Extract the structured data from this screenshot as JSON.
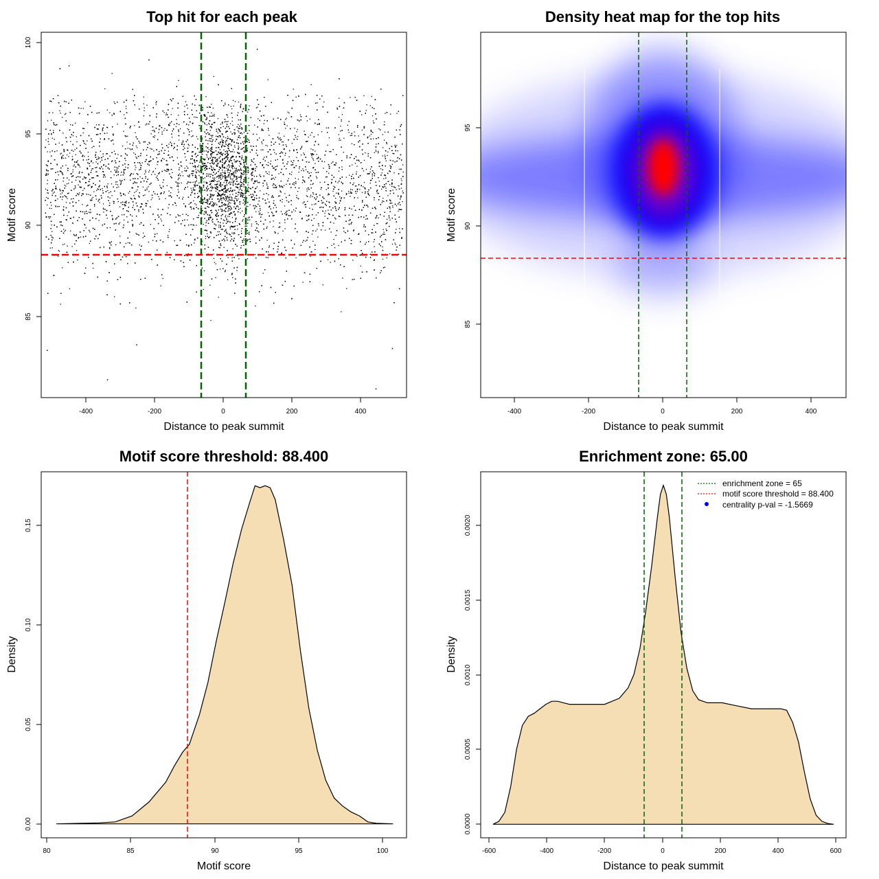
{
  "panels": {
    "scatter": {
      "title": "Top hit for each peak",
      "xlabel": "Distance to peak summit",
      "ylabel": "Motif score",
      "xticks": [
        "-400",
        "-200",
        "0",
        "200",
        "400"
      ],
      "yticks": [
        "85",
        "90",
        "95",
        "100"
      ]
    },
    "heatmap": {
      "title": "Density heat map for the top hits",
      "xlabel": "Distance to peak summit",
      "ylabel": "Motif score",
      "xticks": [
        "-400",
        "-200",
        "0",
        "200",
        "400"
      ],
      "yticks": [
        "85",
        "90",
        "95"
      ]
    },
    "score_density": {
      "title": "Motif score threshold: 88.400",
      "xlabel": "Motif score",
      "ylabel": "Density",
      "xticks": [
        "80",
        "85",
        "90",
        "95",
        "100"
      ],
      "yticks": [
        "0.00",
        "0.05",
        "0.10",
        "0.15"
      ]
    },
    "distance_density": {
      "title": "Enrichment zone: 65.00",
      "xlabel": "Distance to peak summit",
      "ylabel": "Density",
      "xticks": [
        "-600",
        "-400",
        "-200",
        "0",
        "200",
        "400",
        "600"
      ],
      "yticks": [
        "0.0000",
        "0.0005",
        "0.0010",
        "0.0015",
        "0.0020"
      ],
      "legend": [
        "enrichment zone = 65",
        "motif score threshold = 88.400",
        "centrality p-val = -1.5669"
      ]
    }
  },
  "colors": {
    "zone_line": "#006400",
    "threshold_line": "#ff0000",
    "density_fill": "#f5deb3",
    "heat_low": "#0000ff",
    "heat_high": "#ff0000",
    "legend_dot": "#0000ff"
  },
  "chart_data": [
    {
      "type": "scatter",
      "title": "Top hit for each peak",
      "xlabel": "Distance to peak summit",
      "ylabel": "Motif score",
      "xlim": [
        -500,
        500
      ],
      "ylim": [
        80.7,
        100.6
      ],
      "points_summary": "dense cloud of ~16000 points, x uniform over [-490, 490] with central enrichment at 0, y centred near 92.5",
      "x_center": 0,
      "x_halfwidth": 490,
      "y_mean": 92.6,
      "y_sd": 2.4,
      "vlines": [
        -65,
        65
      ],
      "hline": 88.4
    },
    {
      "type": "heatmap",
      "title": "Density heat map for the top hits",
      "xlabel": "Distance to peak summit",
      "ylabel": "Motif score",
      "xlim": [
        -490,
        490
      ],
      "ylim": [
        81.5,
        99.9
      ],
      "peak": {
        "x": 0,
        "y": 93.0
      },
      "vlines": [
        -65,
        65
      ],
      "hline": 88.4
    },
    {
      "type": "area",
      "title": "Motif score threshold: 88.400",
      "xlabel": "Motif score",
      "ylabel": "Density",
      "xlim": [
        79.6,
        101.3
      ],
      "ylim": [
        -0.007,
        0.177
      ],
      "x": [
        80.5,
        82,
        83,
        84,
        85,
        86,
        87,
        87.5,
        88,
        88.4,
        89,
        89.5,
        90,
        90.5,
        91,
        91.5,
        92,
        92.3,
        92.6,
        92.9,
        93.2,
        93.5,
        94,
        94.5,
        95,
        95.5,
        96,
        96.5,
        97,
        97.5,
        98,
        98.5,
        99,
        99.5,
        100.5
      ],
      "values": [
        0.0,
        0.0003,
        0.0005,
        0.001,
        0.004,
        0.011,
        0.021,
        0.029,
        0.036,
        0.04,
        0.055,
        0.071,
        0.092,
        0.111,
        0.131,
        0.148,
        0.162,
        0.17,
        0.169,
        0.17,
        0.169,
        0.163,
        0.143,
        0.12,
        0.087,
        0.058,
        0.037,
        0.022,
        0.013,
        0.009,
        0.006,
        0.004,
        0.001,
        0.0003,
        0.0
      ],
      "threshold": 88.4
    },
    {
      "type": "area",
      "title": "Enrichment zone: 65.00",
      "xlabel": "Distance to peak summit",
      "ylabel": "Density",
      "xlim": [
        -622,
        622
      ],
      "ylim": [
        -9e-05,
        0.00235
      ],
      "x": [
        -580,
        -560,
        -540,
        -520,
        -500,
        -480,
        -460,
        -440,
        -420,
        -400,
        -380,
        -360,
        -340,
        -320,
        -300,
        -250,
        -200,
        -150,
        -120,
        -100,
        -80,
        -60,
        -40,
        -20,
        -10,
        0,
        10,
        20,
        40,
        60,
        80,
        100,
        120,
        150,
        200,
        250,
        300,
        350,
        400,
        420,
        440,
        460,
        480,
        500,
        520,
        540,
        560,
        580
      ],
      "values": [
        0.0,
        2e-05,
        8e-05,
        0.00025,
        0.0005,
        0.00066,
        0.00072,
        0.00074,
        0.00077,
        0.0008,
        0.00082,
        0.00082,
        0.00081,
        0.0008,
        0.0008,
        0.0008,
        0.0008,
        0.00084,
        0.00091,
        0.001,
        0.00117,
        0.00142,
        0.00172,
        0.00205,
        0.0022,
        0.00226,
        0.0022,
        0.00205,
        0.00165,
        0.00128,
        0.00104,
        0.00089,
        0.00083,
        0.00081,
        0.00081,
        0.00079,
        0.00077,
        0.00077,
        0.00077,
        0.00076,
        0.00068,
        0.00055,
        0.00035,
        0.00017,
        6e-05,
        2e-05,
        5e-06,
        0.0
      ],
      "zone": [
        -65,
        65
      ],
      "legend_position": "top-right"
    }
  ]
}
